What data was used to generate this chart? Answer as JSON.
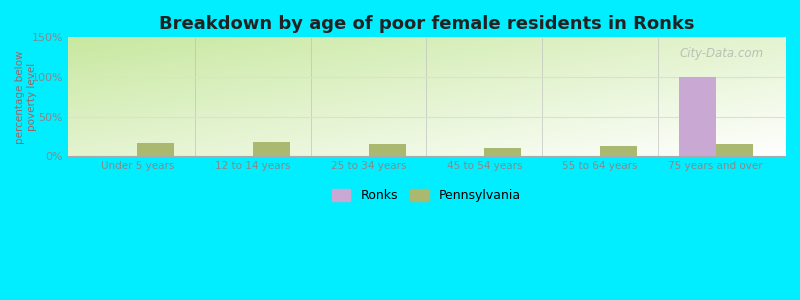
{
  "title": "Breakdown by age of poor female residents in Ronks",
  "categories": [
    "Under 5 years",
    "12 to 14 years",
    "25 to 34 years",
    "45 to 54 years",
    "55 to 64 years",
    "75 years and over"
  ],
  "ronks_values": [
    0,
    0,
    0,
    0,
    0,
    100
  ],
  "pennsylvania_values": [
    17,
    18,
    15,
    10,
    13,
    16
  ],
  "ronks_color": "#c9a8d4",
  "pennsylvania_color": "#aab870",
  "ylabel": "percentage below\npoverty level",
  "ylim": [
    0,
    150
  ],
  "yticks": [
    0,
    50,
    100,
    150
  ],
  "ytick_labels": [
    "0%",
    "50%",
    "100%",
    "150%"
  ],
  "bar_width": 0.32,
  "outer_bg": "#00eeff",
  "title_fontsize": 13,
  "watermark": "City-Data.com",
  "legend_ronks": "Ronks",
  "legend_pennsylvania": "Pennsylvania",
  "divider_color": "#bbbbbb",
  "grid_color": "#dddddd",
  "tick_label_color": "#888888",
  "ylabel_color": "#996666"
}
